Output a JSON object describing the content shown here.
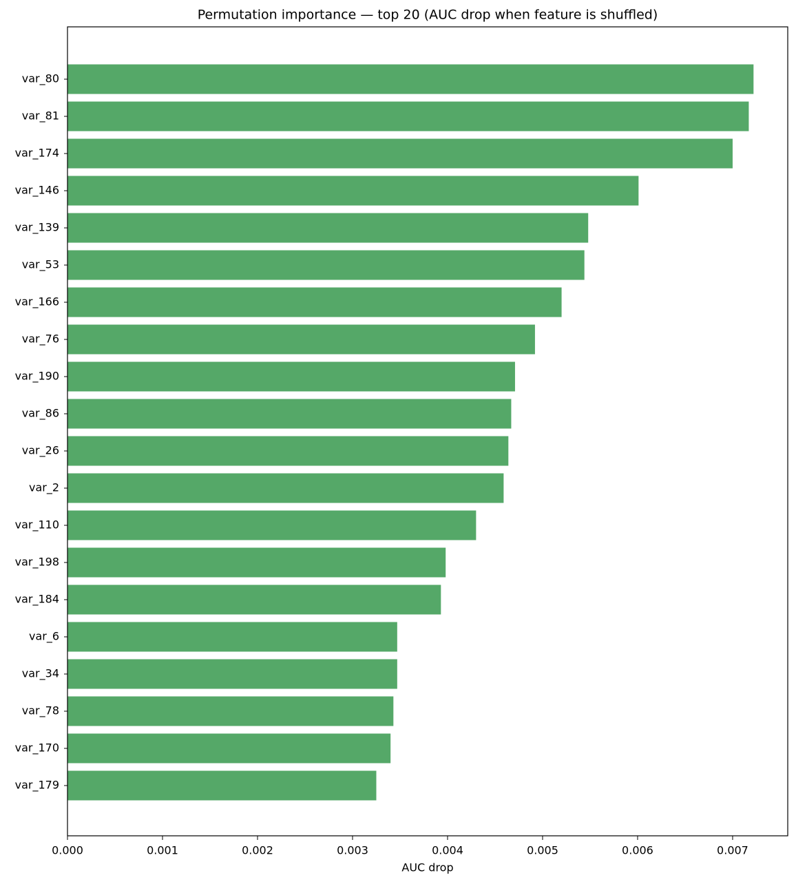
{
  "chart_data": {
    "type": "barh",
    "title": "Permutation importance — top 20 (AUC drop when feature is shuffled)",
    "x_label": "AUC drop",
    "categories": [
      "var_80",
      "var_81",
      "var_174",
      "var_146",
      "var_139",
      "var_53",
      "var_166",
      "var_76",
      "var_190",
      "var_86",
      "var_26",
      "var_2",
      "var_110",
      "var_198",
      "var_184",
      "var_6",
      "var_34",
      "var_78",
      "var_170",
      "var_179"
    ],
    "values": [
      0.00722,
      0.00717,
      0.007,
      0.00601,
      0.00548,
      0.00544,
      0.0052,
      0.00492,
      0.00471,
      0.00467,
      0.00464,
      0.00459,
      0.0043,
      0.00398,
      0.00393,
      0.00347,
      0.00347,
      0.00343,
      0.0034,
      0.00325
    ],
    "color": "#55a868",
    "xlim": [
      0,
      0.00758
    ],
    "xticks": [
      {
        "value": 0,
        "label": "0.000"
      },
      {
        "value": 0.001,
        "label": "0.001"
      },
      {
        "value": 0.002,
        "label": "0.002"
      },
      {
        "value": 0.003,
        "label": "0.003"
      },
      {
        "value": 0.004,
        "label": "0.004"
      },
      {
        "value": 0.005,
        "label": "0.005"
      },
      {
        "value": 0.006,
        "label": "0.006"
      },
      {
        "value": 0.007,
        "label": "0.007"
      }
    ],
    "grid": false
  }
}
